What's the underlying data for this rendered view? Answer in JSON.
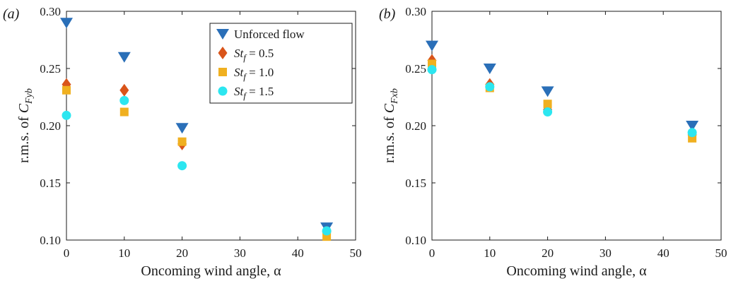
{
  "chart_data": [
    {
      "type": "scatter",
      "panel_label": "(a)",
      "xlabel": "Oncoming wind angle, α",
      "ylabel": "r.m.s. of C_Fyb",
      "ylabel_main": "r.m.s. of ",
      "ylabel_symbol": "C",
      "ylabel_subscript": "Fyb",
      "xlim": [
        0,
        50
      ],
      "ylim": [
        0.1,
        0.3
      ],
      "xticks": [
        "0",
        "10",
        "20",
        "30",
        "40",
        "50"
      ],
      "yticks": [
        "0.10",
        "0.15",
        "0.20",
        "0.25",
        "0.30"
      ],
      "grid": false,
      "legend_position": "top-right",
      "series": [
        {
          "name": "Unforced flow",
          "marker": "triangle-down",
          "color": "#2a6fb8",
          "x": [
            0,
            10,
            20,
            45
          ],
          "y": [
            0.29,
            0.26,
            0.198,
            0.111
          ]
        },
        {
          "name": "St_f = 0.5",
          "marker": "diamond",
          "color": "#d9541a",
          "x": [
            0,
            10,
            20,
            45
          ],
          "y": [
            0.236,
            0.231,
            0.184,
            0.107
          ]
        },
        {
          "name": "St_f = 1.0",
          "marker": "square",
          "color": "#f0b020",
          "x": [
            0,
            10,
            20,
            45
          ],
          "y": [
            0.231,
            0.212,
            0.186,
            0.103
          ]
        },
        {
          "name": "St_f = 1.5",
          "marker": "circle",
          "color": "#2ce6f0",
          "x": [
            0,
            10,
            20,
            45
          ],
          "y": [
            0.209,
            0.222,
            0.165,
            0.108
          ]
        }
      ],
      "legend": [
        {
          "prefix": "Unforced flow",
          "symbol": "",
          "sub": "",
          "suffix": ""
        },
        {
          "prefix": "",
          "symbol": "St",
          "sub": "f",
          "suffix": " = 0.5"
        },
        {
          "prefix": "",
          "symbol": "St",
          "sub": "f",
          "suffix": " = 1.0"
        },
        {
          "prefix": "",
          "symbol": "St",
          "sub": "f",
          "suffix": " = 1.5"
        }
      ]
    },
    {
      "type": "scatter",
      "panel_label": "(b)",
      "xlabel": "Oncoming wind angle, α",
      "ylabel": "r.m.s. of C_Fxb",
      "ylabel_main": "r.m.s. of ",
      "ylabel_symbol": "C",
      "ylabel_subscript": "Fxb",
      "xlim": [
        0,
        50
      ],
      "ylim": [
        0.1,
        0.3
      ],
      "xticks": [
        "0",
        "10",
        "20",
        "30",
        "40",
        "50"
      ],
      "yticks": [
        "0.10",
        "0.15",
        "0.20",
        "0.25",
        "0.30"
      ],
      "grid": false,
      "series": [
        {
          "name": "Unforced flow",
          "marker": "triangle-down",
          "color": "#2a6fb8",
          "x": [
            0,
            10,
            20,
            45
          ],
          "y": [
            0.27,
            0.25,
            0.23,
            0.2
          ]
        },
        {
          "name": "St_f = 0.5",
          "marker": "diamond",
          "color": "#d9541a",
          "x": [
            0,
            10,
            20,
            45
          ],
          "y": [
            0.257,
            0.236,
            0.214,
            0.192
          ]
        },
        {
          "name": "St_f = 1.0",
          "marker": "square",
          "color": "#f0b020",
          "x": [
            0,
            10,
            20,
            45
          ],
          "y": [
            0.254,
            0.233,
            0.219,
            0.189
          ]
        },
        {
          "name": "St_f = 1.5",
          "marker": "circle",
          "color": "#2ce6f0",
          "x": [
            0,
            10,
            20,
            45
          ],
          "y": [
            0.249,
            0.234,
            0.212,
            0.194
          ]
        }
      ]
    }
  ]
}
